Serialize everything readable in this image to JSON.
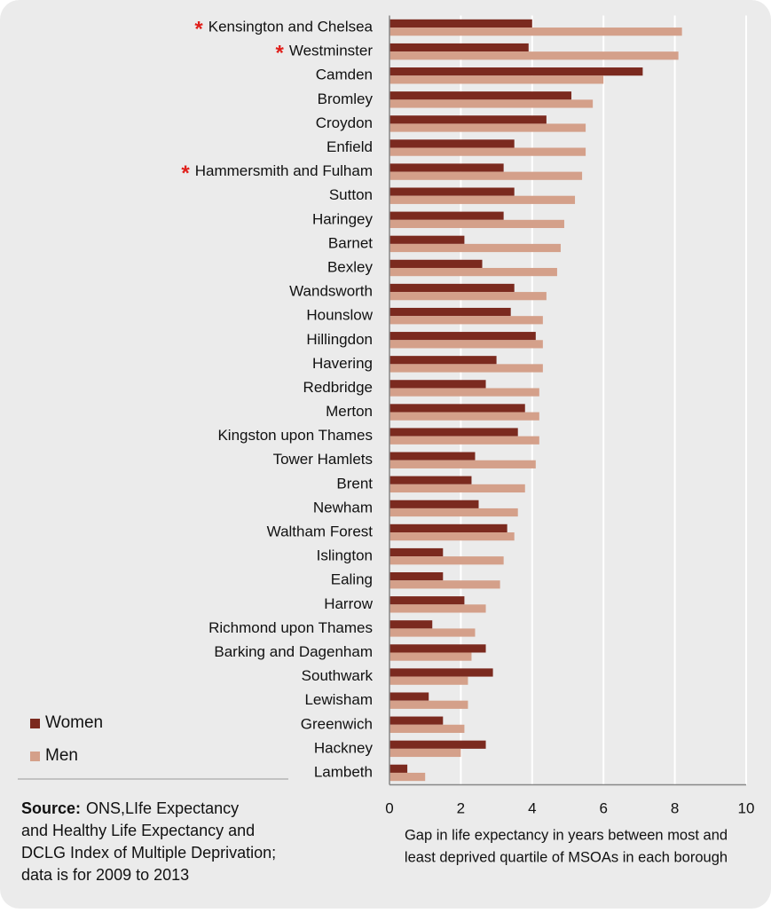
{
  "chart_data": {
    "type": "hbar",
    "categories": [
      "Kensington and Chelsea",
      "Westminster",
      "Camden",
      "Bromley",
      "Croydon",
      "Enfield",
      "Hammersmith and Fulham",
      "Sutton",
      "Haringey",
      "Barnet",
      "Bexley",
      "Wandsworth",
      "Hounslow",
      "Hillingdon",
      "Havering",
      "Redbridge",
      "Merton",
      "Kingston upon Thames",
      "Tower Hamlets",
      "Brent",
      "Newham",
      "Waltham Forest",
      "Islington",
      "Ealing",
      "Harrow",
      "Richmond upon Thames",
      "Barking and Dagenham",
      "Southwark",
      "Lewisham",
      "Greenwich",
      "Hackney",
      "Lambeth"
    ],
    "highlight_marker": "*",
    "highlighted": [
      true,
      true,
      false,
      false,
      false,
      false,
      true,
      false,
      false,
      false,
      false,
      false,
      false,
      false,
      false,
      false,
      false,
      false,
      false,
      false,
      false,
      false,
      false,
      false,
      false,
      false,
      false,
      false,
      false,
      false,
      false,
      false
    ],
    "series": [
      {
        "name": "Women",
        "color": "#7b2a1f",
        "values": [
          4.0,
          3.9,
          7.1,
          5.1,
          4.4,
          3.5,
          3.2,
          3.5,
          3.2,
          2.1,
          2.6,
          3.5,
          3.4,
          4.1,
          3.0,
          2.7,
          3.8,
          3.6,
          2.4,
          2.3,
          2.5,
          3.3,
          1.5,
          1.5,
          2.1,
          1.2,
          2.7,
          2.9,
          1.1,
          1.5,
          2.7,
          0.5
        ]
      },
      {
        "name": "Men",
        "color": "#d4a08a",
        "values": [
          8.2,
          8.1,
          6.0,
          5.7,
          5.5,
          5.5,
          5.4,
          5.2,
          4.9,
          4.8,
          4.7,
          4.4,
          4.3,
          4.3,
          4.3,
          4.2,
          4.2,
          4.2,
          4.1,
          3.8,
          3.6,
          3.5,
          3.2,
          3.1,
          2.7,
          2.4,
          2.3,
          2.2,
          2.2,
          2.1,
          2.0,
          1.0
        ]
      }
    ],
    "xlim": [
      0,
      10
    ],
    "xticks": [
      0,
      2,
      4,
      6,
      8,
      10
    ],
    "grid": true,
    "x_label": [
      "Gap in life expectancy in years between most and",
      "least deprived quartile of MSOAs in each borough"
    ],
    "source_label": "Source:",
    "source": [
      "ONS,LIfe Expectancy",
      "and Healthy Life Expectancy and",
      "DCLG Index of Multiple Deprivation;",
      "data is for 2009 to 2013"
    ]
  }
}
